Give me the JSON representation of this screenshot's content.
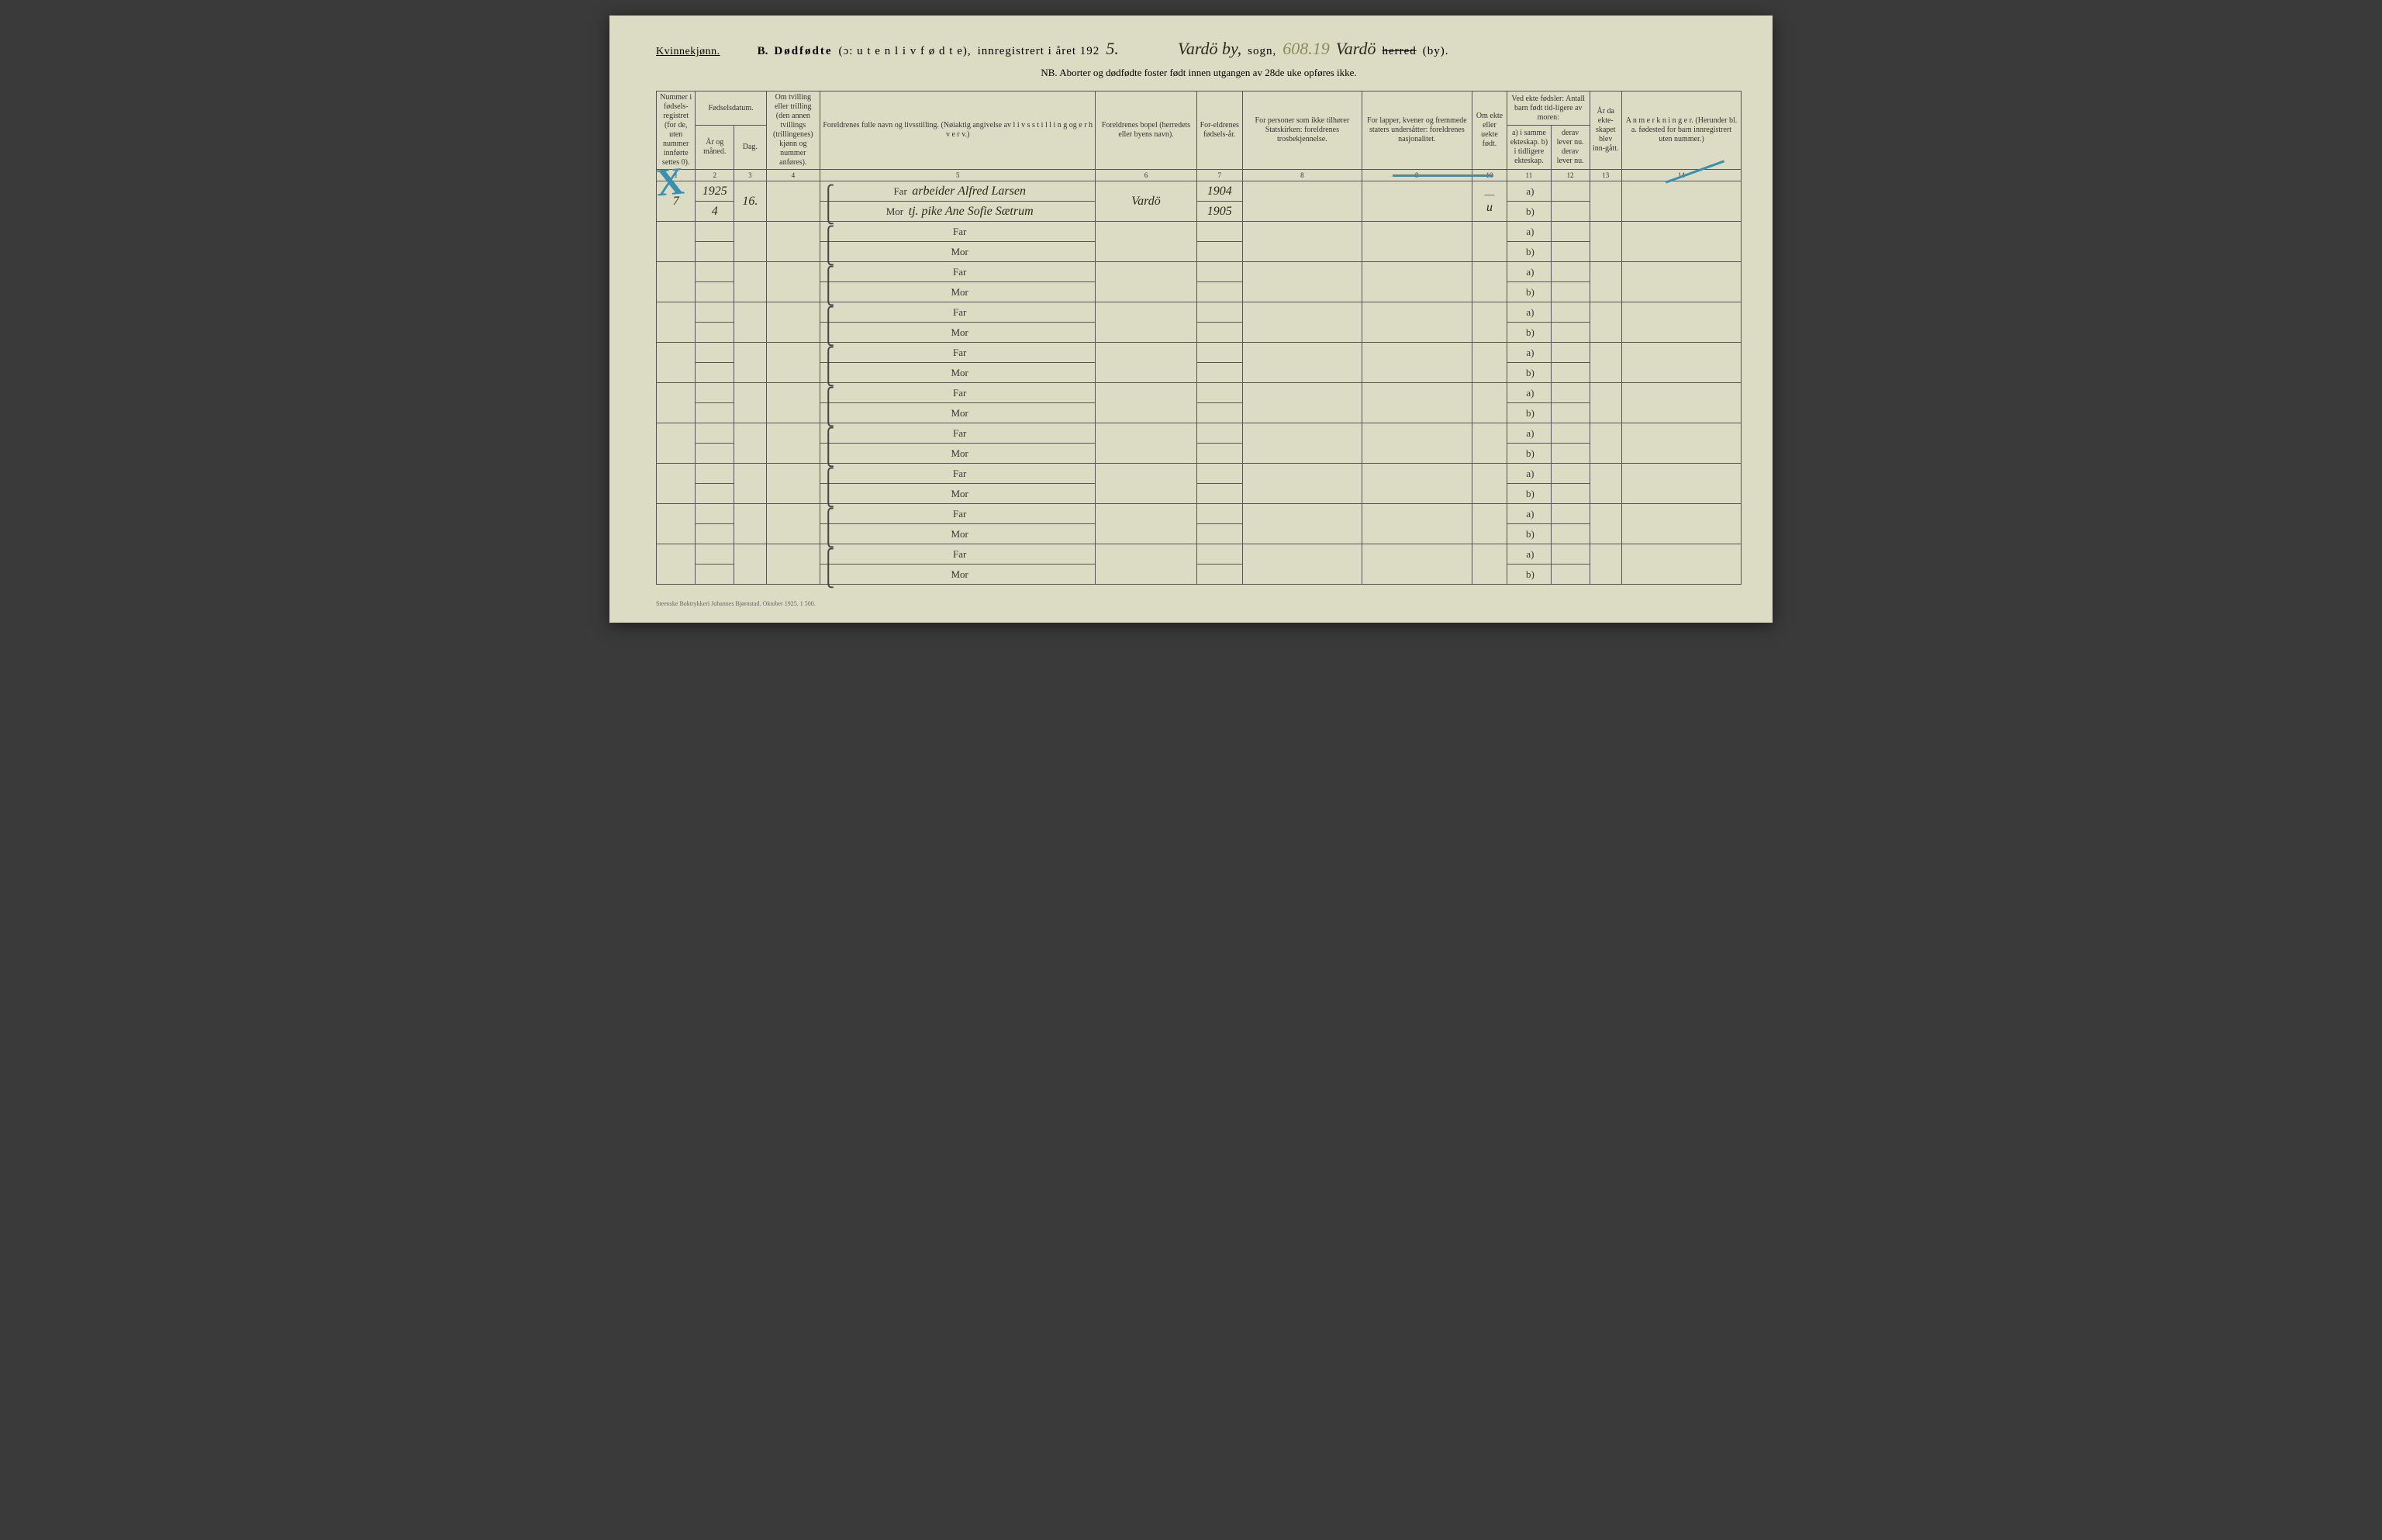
{
  "header": {
    "gender": "Kvinnekjønn.",
    "section": "B.",
    "title_main": "Dødfødte",
    "title_paren": "(ɔ:  u t e n  l i v  f ø d t e),",
    "title_rest": "innregistrert i året 192",
    "year_suffix": "5.",
    "sogn_hw": "Vardö by,",
    "sogn_label": "sogn,",
    "code_hw": "608.19",
    "herred_hw": "Vardö",
    "herred_struck": "herred",
    "by_label": "(by).",
    "nb": "NB.  Aborter og dødfødte foster født innen utgangen av 28de uke opføres ikke."
  },
  "columns": {
    "c1": "Nummer i fødsels-registret (for de, uten nummer innførte settes 0).",
    "c23_top": "Fødselsdatum.",
    "c2": "År og måned.",
    "c3": "Dag.",
    "c4": "Om tvilling eller trilling (den annen tvillings (trillingenes) kjønn og nummer anføres).",
    "c5": "Foreldrenes fulle navn og livsstilling. (Nøiaktig angivelse av  l i v s s t i l l i n g  og  e r h v e r v.)",
    "c6": "Foreldrenes bopel (herredets eller byens navn).",
    "c7": "For-eldrenes fødsels-år.",
    "c8": "For personer som ikke tilhører Statskirken: foreldrenes trosbekjennelse.",
    "c9": "For lapper, kvener og fremmede staters undersåtter: foreldrenes nasjonalitet.",
    "c10": "Om ekte eller uekte født.",
    "c1112_top": "Ved ekte fødsler: Antall barn født tid-ligere av moren:",
    "c11": "a) i samme ekteskap. b) i tidligere ekteskap.",
    "c12": "derav lever nu. derav lever nu.",
    "c13": "År da ekte-skapet blev inn-gått.",
    "c14": "A n m e r k n i n g e r.\n(Herunder bl. a. fødested for barn innregistrert uten nummer.)"
  },
  "colnums": [
    "1",
    "2",
    "3",
    "4",
    "5",
    "6",
    "7",
    "8",
    "9",
    "10",
    "11",
    "12",
    "13",
    "14"
  ],
  "labels": {
    "far": "Far",
    "mor": "Mor",
    "a": "a)",
    "b": "b)"
  },
  "entry": {
    "num": "7",
    "year_month": "1925\n4",
    "day": "16.",
    "far_text": "arbeider Alfred Larsen",
    "mor_text": "tj. pike Ane Sofie Sætrum",
    "bopel": "Vardö",
    "far_year": "1904",
    "mor_year": "1905",
    "ekte": "u",
    "ekte_dash": "—"
  },
  "footer": "Steenske Boktrykkeri Johannes Bjørnstad.   Oktober 1925.   1 500."
}
